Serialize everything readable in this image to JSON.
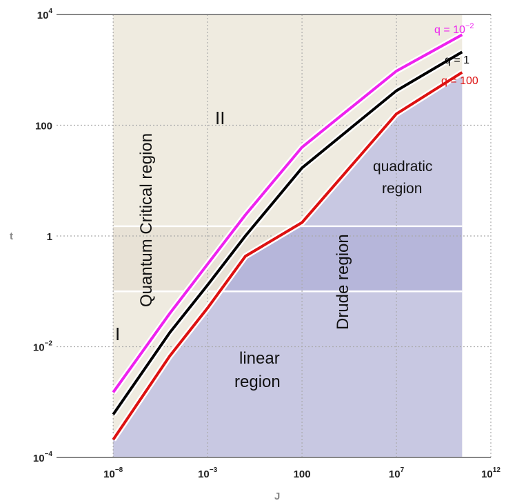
{
  "chart_data": {
    "type": "line",
    "xlabel": "J",
    "ylabel": "t",
    "xscale": "log",
    "yscale": "log",
    "xlim": [
      1e-11,
      1000000000000.0
    ],
    "ylim": [
      0.0001,
      10000.0
    ],
    "x_ticks": [
      {
        "base": "10",
        "exp": "−8",
        "value": 1e-08
      },
      {
        "base": "10",
        "exp": "−3",
        "value": 0.001
      },
      {
        "base": "",
        "exp": "",
        "text": "100",
        "value": 100
      },
      {
        "base": "10",
        "exp": "7",
        "value": 10000000.0
      },
      {
        "base": "10",
        "exp": "12",
        "value": 1000000000000.0
      }
    ],
    "y_ticks": [
      {
        "base": "10",
        "exp": "−4",
        "value": 0.0001
      },
      {
        "base": "10",
        "exp": "−2",
        "value": 0.01
      },
      {
        "base": "",
        "exp": "",
        "text": "1",
        "value": 1
      },
      {
        "base": "",
        "exp": "",
        "text": "100",
        "value": 100
      },
      {
        "base": "10",
        "exp": "4",
        "value": 10000.0
      }
    ],
    "grid": true,
    "series": [
      {
        "name": "q = 10",
        "name_exp": "−2",
        "color": "#ee22ee",
        "points": [
          [
            1e-08,
            0.0015
          ],
          [
            1e-05,
            0.04
          ],
          [
            0.001,
            0.31
          ],
          [
            0.1,
            2.4
          ],
          [
            100,
            40
          ],
          [
            10000000.0,
            950
          ],
          [
            30000000000.0,
            4300
          ]
        ]
      },
      {
        "name": "q = 1",
        "name_exp": "",
        "color": "#000000",
        "points": [
          [
            1e-08,
            0.0006
          ],
          [
            1e-05,
            0.018
          ],
          [
            0.001,
            0.13
          ],
          [
            0.1,
            1.0
          ],
          [
            100,
            17
          ],
          [
            10000000.0,
            420
          ],
          [
            30000000000.0,
            2100
          ]
        ]
      },
      {
        "name": "q = 100",
        "name_exp": "",
        "color": "#dd1111",
        "points": [
          [
            1e-08,
            0.00021
          ],
          [
            1e-05,
            0.0068
          ],
          [
            0.001,
            0.05
          ],
          [
            0.1,
            0.43
          ],
          [
            100,
            1.75
          ],
          [
            10000000.0,
            160
          ],
          [
            30000000000.0,
            900
          ]
        ]
      }
    ],
    "regions": {
      "quantum_critical_label": "Quantum Critical region",
      "roman_one": "I",
      "roman_two": "II",
      "quadratic": [
        "quadratic",
        "region"
      ],
      "drude": "Drude region",
      "linear": [
        "linear",
        "region"
      ]
    },
    "colors": {
      "upper_region": "#efebe0",
      "band_upper": "#e8e2d6",
      "lower_region": "#c8c8e2",
      "band_lower": "#b6b6da",
      "grid": "#aaaaaa"
    }
  }
}
